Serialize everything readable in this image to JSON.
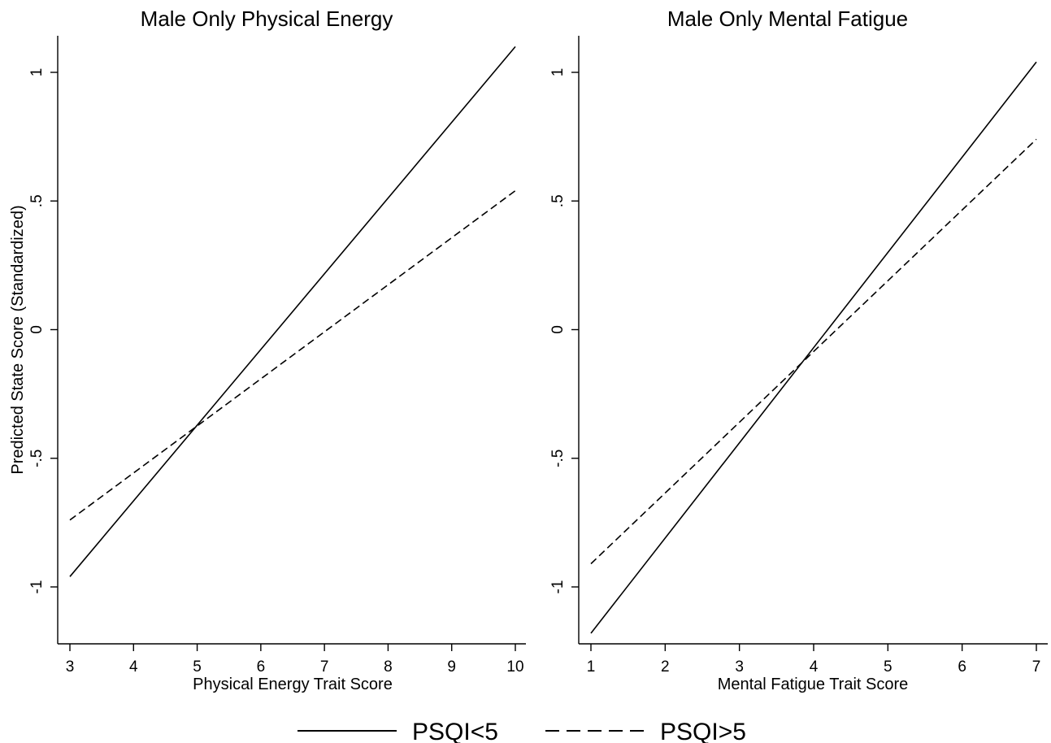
{
  "chart_data": [
    {
      "type": "line",
      "title": "Male Only Physical Energy",
      "xlabel": "Physical Energy Trait Score",
      "ylabel": "Predicted State Score (Standardized)",
      "xlim": [
        3,
        10
      ],
      "ylim": [
        -1.2,
        1.1
      ],
      "xticks": [
        "3",
        "4",
        "5",
        "6",
        "7",
        "8",
        "9",
        "10"
      ],
      "yticks": [
        "-1",
        "-.5",
        "0",
        ".5",
        "1"
      ],
      "yticks_values": [
        -1,
        -0.5,
        0,
        0.5,
        1
      ],
      "xticks_values": [
        3,
        4,
        5,
        6,
        7,
        8,
        9,
        10
      ],
      "series": [
        {
          "name": "PSQI<5",
          "style": "solid",
          "x": [
            3,
            10
          ],
          "y": [
            -0.96,
            1.1
          ]
        },
        {
          "name": "PSQI>5",
          "style": "dashed",
          "x": [
            3,
            10
          ],
          "y": [
            -0.74,
            0.54
          ]
        }
      ]
    },
    {
      "type": "line",
      "title": "Male Only Mental Fatigue",
      "xlabel": "Mental Fatigue Trait Score",
      "ylabel": "",
      "xlim": [
        1,
        7
      ],
      "ylim": [
        -1.2,
        1.1
      ],
      "xticks": [
        "1",
        "2",
        "3",
        "4",
        "5",
        "6",
        "7"
      ],
      "yticks": [
        "-1",
        "-.5",
        "0",
        ".5",
        "1"
      ],
      "yticks_values": [
        -1,
        -0.5,
        0,
        0.5,
        1
      ],
      "xticks_values": [
        1,
        2,
        3,
        4,
        5,
        6,
        7
      ],
      "series": [
        {
          "name": "PSQI<5",
          "style": "solid",
          "x": [
            1,
            7
          ],
          "y": [
            -1.18,
            1.04
          ]
        },
        {
          "name": "PSQI>5",
          "style": "dashed",
          "x": [
            1,
            7
          ],
          "y": [
            -0.91,
            0.74
          ]
        }
      ]
    }
  ],
  "legend": {
    "placement": "bottom",
    "items": [
      {
        "label": "PSQI<5",
        "style": "solid"
      },
      {
        "label": "PSQI>5",
        "style": "dashed"
      }
    ]
  }
}
